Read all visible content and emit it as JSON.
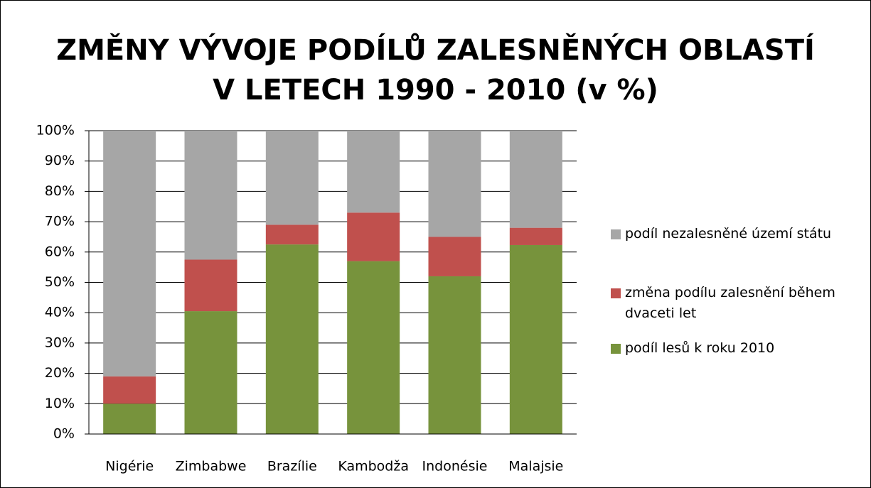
{
  "chart_data": {
    "type": "stacked_bar",
    "title": "ZMĚNY VÝVOJE PODÍLŮ ZALESNĚNÝCH OBLASTÍ\nV LETECH 1990 - 2010 (v %)",
    "categories": [
      "Nigérie",
      "Zimbabwe",
      "Brazílie",
      "Kambodža",
      "Indonésie",
      "Malajsie"
    ],
    "series": [
      {
        "name": "podíl lesů k roku 2010",
        "color": "#77933c",
        "values": [
          10,
          40.5,
          62.5,
          57,
          52,
          62.3
        ]
      },
      {
        "name": "změna podílu zalesnění během dvaceti let",
        "color": "#c0504d",
        "values": [
          9,
          17,
          6.5,
          16,
          13,
          5.7
        ]
      },
      {
        "name": "podíl nezalesněné území státu",
        "color": "#a6a6a6",
        "values": [
          81,
          42.5,
          31,
          27,
          35,
          32
        ]
      }
    ],
    "ylim": [
      0,
      100
    ],
    "yticks": [
      {
        "value": 0,
        "label": "0%"
      },
      {
        "value": 10,
        "label": "10%"
      },
      {
        "value": 20,
        "label": "20%"
      },
      {
        "value": 30,
        "label": "30%"
      },
      {
        "value": 40,
        "label": "40%"
      },
      {
        "value": 50,
        "label": "50%"
      },
      {
        "value": 60,
        "label": "60%"
      },
      {
        "value": 70,
        "label": "70%"
      },
      {
        "value": 80,
        "label": "80%"
      },
      {
        "value": 90,
        "label": "90%"
      },
      {
        "value": 100,
        "label": "100%"
      }
    ],
    "grid": true,
    "legend": "right"
  }
}
